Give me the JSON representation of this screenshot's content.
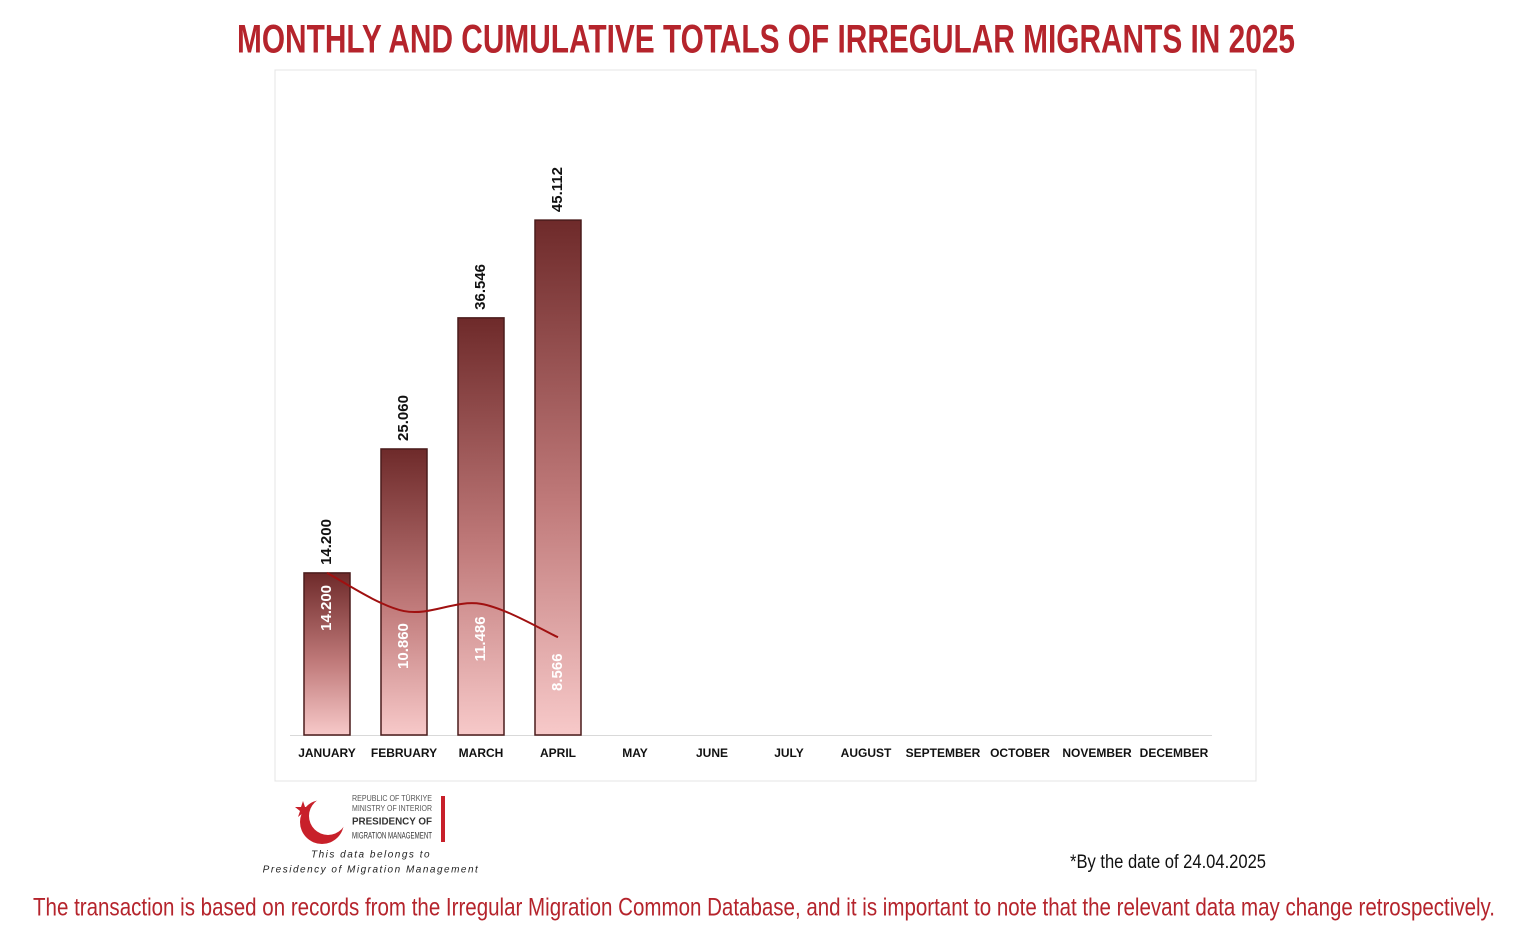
{
  "chart_data": {
    "type": "bar",
    "title": "MONTHLY AND CUMULATIVE TOTALS OF IRREGULAR MIGRANTS IN 2025",
    "categories": [
      "JANUARY",
      "FEBRUARY",
      "MARCH",
      "APRIL",
      "MAY",
      "JUNE",
      "JULY",
      "AUGUST",
      "SEPTEMBER",
      "OCTOBER",
      "NOVEMBER",
      "DECEMBER"
    ],
    "series": [
      {
        "type": "bar",
        "color": "#6e2a2a",
        "values": [
          14200,
          25060,
          36546,
          45112,
          null,
          null,
          null,
          null,
          null,
          null,
          null,
          null
        ],
        "value_labels": [
          "14.200",
          "25.060",
          "36.546",
          "45.112",
          null,
          null,
          null,
          null,
          null,
          null,
          null,
          null
        ]
      },
      {
        "type": "line",
        "color": "#a01010",
        "values": [
          14200,
          10860,
          11486,
          8566,
          null,
          null,
          null,
          null,
          null,
          null,
          null,
          null
        ],
        "value_labels": [
          "14.200",
          "10.860",
          "11.486",
          "8.566",
          null,
          null,
          null,
          null,
          null,
          null,
          null,
          null
        ]
      }
    ],
    "ylim": [
      0,
      58000
    ]
  },
  "logo": {
    "line1": "REPUBLIC OF TÜRKIYE",
    "line2": "MINISTRY OF INTERIOR",
    "line3": "PRESIDENCY OF",
    "line4": "MIGRATION MANAGEMENT",
    "credit1": "This data belongs to",
    "credit2": "Presidency of Migration Management"
  },
  "note": "*By the date of 24.04.2025",
  "footer": "The transaction is based on records from the Irregular Migration Common Database, and it is important to note that the relevant data may change retrospectively."
}
